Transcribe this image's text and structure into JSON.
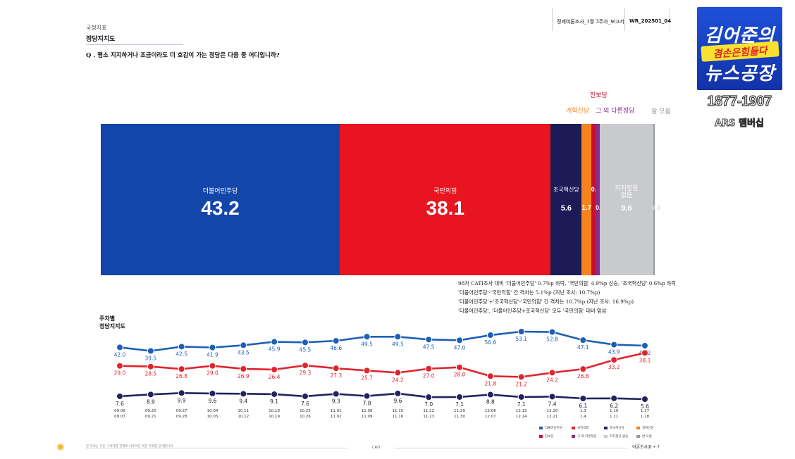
{
  "header": {
    "category": "국정지표",
    "title": "정당지지도",
    "report_id": "정례여론조사_1월 3주차_보고서",
    "report_no": "WR_202501_04"
  },
  "question": "Q . 평소 지지하거나 조금이라도 더 호감이 가는 정당은 다음 중 어디입니까?",
  "chart_data": [
    {
      "type": "bar",
      "stacked": true,
      "orientation": "horizontal",
      "segments": [
        {
          "name": "더불어민주당",
          "value": 43.2,
          "color": "#1246a8"
        },
        {
          "name": "국민의힘",
          "value": 38.1,
          "color": "#e8141f"
        },
        {
          "name": "조국혁신당",
          "value": 5.6,
          "color": "#1c1a57"
        },
        {
          "name": "개혁신당",
          "value": 1.7,
          "color": "#f7831c"
        },
        {
          "name": "진보당",
          "value": 0.8,
          "color": "#c8102e"
        },
        {
          "name": "그 외 다른정당",
          "value": 0.8,
          "color": "#8a2b8c"
        },
        {
          "name": "지지정당 없음",
          "value": 9.6,
          "color": "#c9cace"
        },
        {
          "name": "잘 모름",
          "value": 0.3,
          "color": "#9a9a9a"
        }
      ],
      "segment_labels": {
        "no_party_line1": "지지정당",
        "no_party_line2": "없음"
      }
    },
    {
      "type": "line",
      "title": "주차별 정당지지도",
      "title_line1": "주차별",
      "title_line2": "정당지지도",
      "x": [
        [
          "09.06",
          "09.07"
        ],
        [
          "09.20",
          "09.21"
        ],
        [
          "09.27",
          "09.28"
        ],
        [
          "10.04",
          "10.05"
        ],
        [
          "10.11",
          "10.12"
        ],
        [
          "10.18",
          "10.19"
        ],
        [
          "10.25",
          "10.26"
        ],
        [
          "11.01",
          "11.02"
        ],
        [
          "11.08",
          "11.09"
        ],
        [
          "11.15",
          "11.16"
        ],
        [
          "11.22",
          "11.23"
        ],
        [
          "11.29",
          "11.30"
        ],
        [
          "12.06",
          "12.07"
        ],
        [
          "12.13",
          "12.14"
        ],
        [
          "12.20",
          "12.21"
        ],
        [
          "1.3",
          "1.4"
        ],
        [
          "1.10",
          "1.11"
        ],
        [
          "1.17",
          "1.18"
        ]
      ],
      "series": [
        {
          "name": "더불어민주당",
          "color": "#1d5fb8",
          "values": [
            42.0,
            39.5,
            42.5,
            41.9,
            43.5,
            45.9,
            45.5,
            46.6,
            49.5,
            49.5,
            47.5,
            47.0,
            50.6,
            53.1,
            52.8,
            47.1,
            43.9,
            43.2
          ]
        },
        {
          "name": "국민의힘",
          "color": "#e0242c",
          "values": [
            29.0,
            28.5,
            26.8,
            29.0,
            26.9,
            26.4,
            29.3,
            27.3,
            25.7,
            24.2,
            27.0,
            28.0,
            21.8,
            21.2,
            24.2,
            26.8,
            33.2,
            38.1
          ]
        },
        {
          "name": "조국혁신당",
          "color": "#23215e",
          "values": [
            7.6,
            8.9,
            9.9,
            9.6,
            9.4,
            9.1,
            7.6,
            9.3,
            7.8,
            9.6,
            7.0,
            7.1,
            8.8,
            7.1,
            7.4,
            6.1,
            6.2,
            5.6
          ]
        }
      ],
      "legend": {
        "placement": "bottom-right",
        "items": [
          {
            "name": "더불어민주당",
            "color": "#1d5fb8"
          },
          {
            "name": "국민의힘",
            "color": "#e0242c"
          },
          {
            "name": "조국혁신당",
            "color": "#23215e"
          },
          {
            "name": "개혁신당",
            "color": "#f7831c"
          },
          {
            "name": "진보당",
            "color": "#c8102e"
          },
          {
            "name": "그 외 다른정당",
            "color": "#8a2b8c"
          },
          {
            "name": "지지정당 없음",
            "color": "#c9cace"
          },
          {
            "name": "잘 모름",
            "color": "#9a9a9a"
          }
        ]
      }
    }
  ],
  "notes": [
    "98차 CATI조사 대비 '더불어민주당' 0.7%p 하락, '국민의힘' 4.9%p 상승, '조국혁신당' 0.6%p 하락",
    "'더불어민주당'-'국민의힘' 간 격차는 5.1%p (지난 조사: 10.7%p)",
    "'더불어민주당'+'조국혁신당'-'국민의힘' 간 격차는 10.7%p (지난 조사: 16.9%p)",
    "'더불어민주당', '더불어민주당+조국혁신당' 모두 '국민의힘' 대비 앞섬"
  ],
  "footer": {
    "method": "CATI",
    "page_label": "여론조사꽃 • 7",
    "footnote": "본 자료는 모든 구독자를 전제로 이루어진 객관 자료를 공개합니다"
  },
  "branding": {
    "line1": "김어준의",
    "mid": "겸손은힘들다",
    "line2": "뉴스공장",
    "phone": "1877-1907",
    "ars": "ARS 멤버십"
  }
}
